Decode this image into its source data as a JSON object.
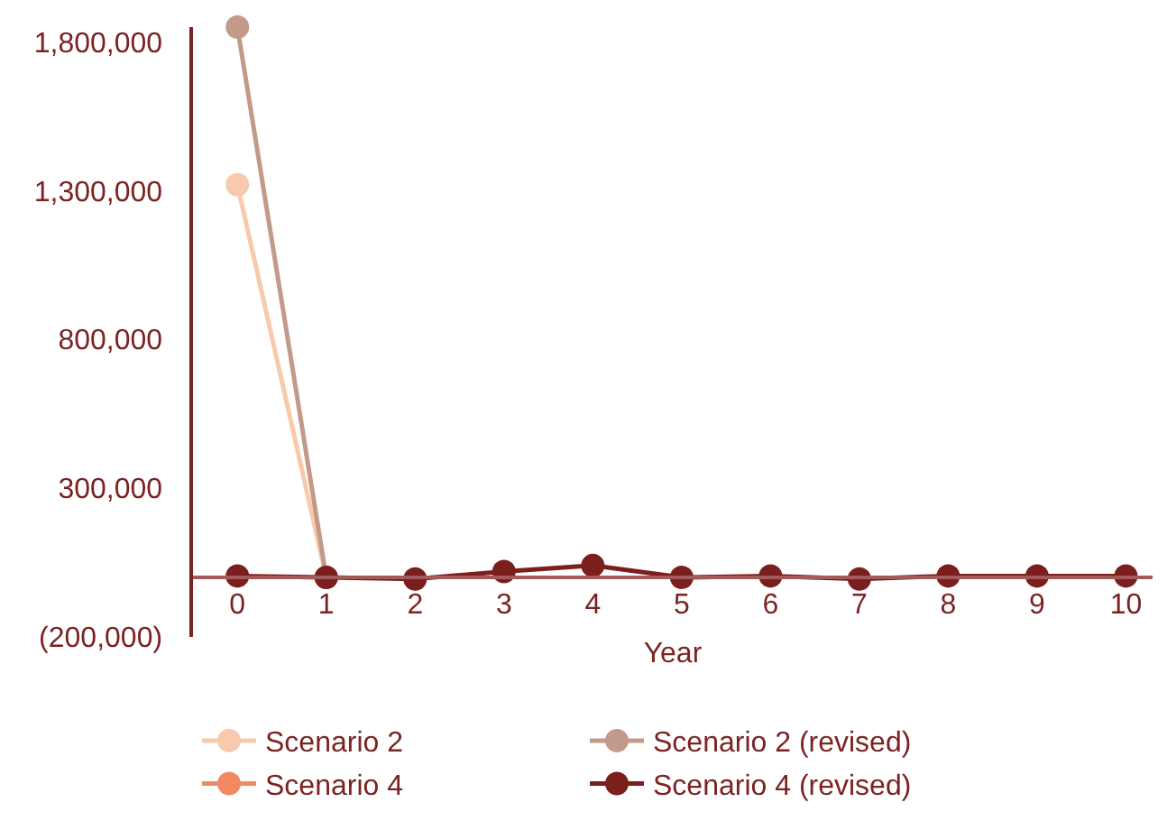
{
  "chart_data": {
    "type": "line",
    "xlabel": "Year",
    "x": [
      0,
      1,
      2,
      3,
      4,
      5,
      6,
      7,
      8,
      9,
      10
    ],
    "series": [
      {
        "name": "Scenario 2",
        "color": "#f9c9ae",
        "values": [
          1320000,
          0,
          null,
          null,
          null,
          null,
          null,
          null,
          null,
          null,
          null
        ]
      },
      {
        "name": "Scenario 2 (revised)",
        "color": "#c39a89",
        "values": [
          1850000,
          0,
          null,
          null,
          null,
          null,
          null,
          null,
          null,
          null,
          null
        ]
      },
      {
        "name": "Scenario 4",
        "color": "#ef8a62",
        "values": [
          null,
          null,
          null,
          null,
          null,
          null,
          null,
          null,
          null,
          null,
          null
        ]
      },
      {
        "name": "Scenario 4 (revised)",
        "color": "#7b1e1e",
        "values": [
          5000,
          0,
          -5000,
          20000,
          40000,
          0,
          5000,
          -5000,
          5000,
          5000,
          5000
        ]
      }
    ],
    "xlim": [
      -0.5,
      10.3
    ],
    "xticks": [
      0,
      1,
      2,
      3,
      4,
      5,
      6,
      7,
      8,
      9,
      10
    ],
    "ylim": [
      -200000,
      1850000
    ],
    "yticks": [
      {
        "value": -200000,
        "label": "(200,000)"
      },
      {
        "value": 300000,
        "label": "300,000"
      },
      {
        "value": 800000,
        "label": "800,000"
      },
      {
        "value": 1300000,
        "label": "1,300,000"
      },
      {
        "value": 1800000,
        "label": "1,800,000"
      }
    ],
    "grid": false,
    "legend": "bottom",
    "marker": "circle",
    "line_style": "solid"
  }
}
